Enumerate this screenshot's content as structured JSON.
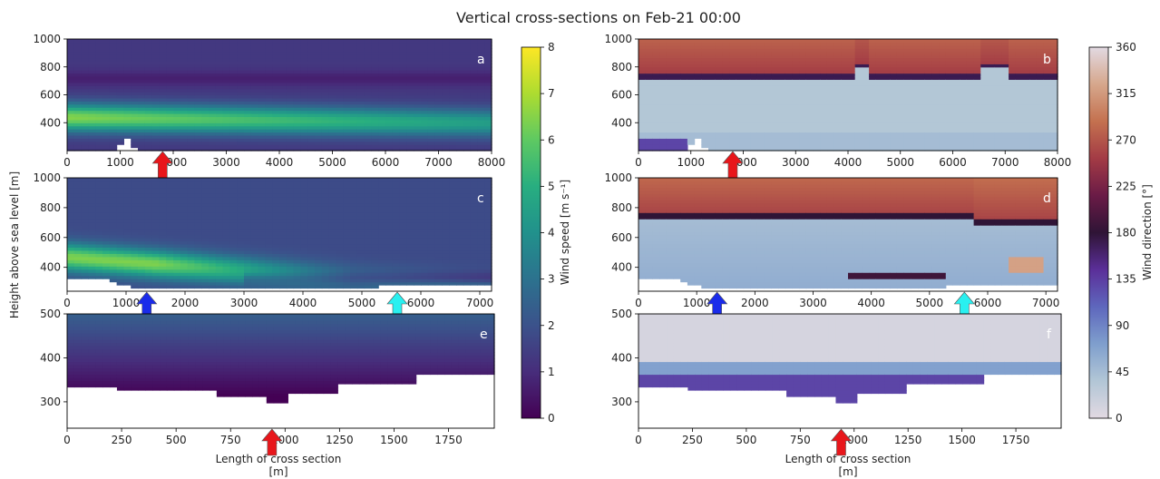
{
  "figure": {
    "title": "Vertical cross-sections on Feb-21 00:00",
    "ylabel": "Height above sea level [m]",
    "xlabel_line1": "Length of cross section",
    "xlabel_line2": "[m]"
  },
  "chart_data": [
    {
      "panel": "a",
      "type": "heatmap",
      "variable": "Wind speed",
      "xlim": [
        0,
        8000
      ],
      "ylim": [
        200,
        1000
      ],
      "xticks": [
        "0",
        "1000",
        "2000",
        "3000",
        "4000",
        "5000",
        "6000",
        "7000",
        "8000"
      ],
      "xtick_vals": [
        0,
        1000,
        2000,
        3000,
        4000,
        5000,
        6000,
        7000,
        8000
      ],
      "yticks": [
        "400",
        "600",
        "800",
        "1000"
      ],
      "ytick_vals": [
        400,
        600,
        800,
        1000
      ],
      "jet_core_height_m": 440,
      "jet_core_speed": 6.5,
      "arrows": [
        {
          "x": 1800,
          "color": "#e8161b"
        }
      ]
    },
    {
      "panel": "b",
      "type": "heatmap",
      "variable": "Wind direction",
      "xlim": [
        0,
        8000
      ],
      "ylim": [
        200,
        1000
      ],
      "xticks": [
        "0",
        "1000",
        "2000",
        "3000",
        "4000",
        "5000",
        "6000",
        "7000",
        "8000"
      ],
      "xtick_vals": [
        0,
        1000,
        2000,
        3000,
        4000,
        5000,
        6000,
        7000,
        8000
      ],
      "yticks": [
        "400",
        "600",
        "800",
        "1000"
      ],
      "ytick_vals": [
        400,
        600,
        800,
        1000
      ],
      "direction_shift_height_m": 720,
      "arrows": [
        {
          "x": 1800,
          "color": "#e8161b"
        }
      ]
    },
    {
      "panel": "c",
      "type": "heatmap",
      "variable": "Wind speed",
      "xlim": [
        0,
        7200
      ],
      "ylim": [
        240,
        1000
      ],
      "xticks": [
        "0",
        "1000",
        "2000",
        "3000",
        "4000",
        "5000",
        "6000",
        "7000"
      ],
      "xtick_vals": [
        0,
        1000,
        2000,
        3000,
        4000,
        5000,
        6000,
        7000
      ],
      "yticks": [
        "400",
        "600",
        "800",
        "1000"
      ],
      "ytick_vals": [
        400,
        600,
        800,
        1000
      ],
      "jet_core_height_m": 470,
      "jet_core_speed": 6.2,
      "arrows": [
        {
          "x": 1350,
          "color": "#1a2bea"
        },
        {
          "x": 5600,
          "color": "#29f0f0"
        }
      ]
    },
    {
      "panel": "d",
      "type": "heatmap",
      "variable": "Wind direction",
      "xlim": [
        0,
        7200
      ],
      "ylim": [
        240,
        1000
      ],
      "xticks": [
        "0",
        "1000",
        "2000",
        "3000",
        "4000",
        "5000",
        "6000",
        "7000"
      ],
      "xtick_vals": [
        0,
        1000,
        2000,
        3000,
        4000,
        5000,
        6000,
        7000
      ],
      "yticks": [
        "400",
        "600",
        "800",
        "1000"
      ],
      "ytick_vals": [
        400,
        600,
        800,
        1000
      ],
      "direction_shift_height_m": 730,
      "arrows": [
        {
          "x": 1350,
          "color": "#1a2bea"
        },
        {
          "x": 5600,
          "color": "#29f0f0"
        }
      ]
    },
    {
      "panel": "e",
      "type": "heatmap",
      "variable": "Wind speed",
      "xlim": [
        0,
        1960
      ],
      "ylim": [
        240,
        500
      ],
      "xticks": [
        "0",
        "250",
        "500",
        "750",
        "1000",
        "1250",
        "1500",
        "1750"
      ],
      "xtick_vals": [
        0,
        250,
        500,
        750,
        1000,
        1250,
        1500,
        1750
      ],
      "yticks": [
        "300",
        "400",
        "500"
      ],
      "ytick_vals": [
        300,
        400,
        500
      ],
      "arrows": [
        {
          "x": 940,
          "color": "#e8161b"
        }
      ]
    },
    {
      "panel": "f",
      "type": "heatmap",
      "variable": "Wind direction",
      "xlim": [
        0,
        1960
      ],
      "ylim": [
        240,
        500
      ],
      "xticks": [
        "0",
        "250",
        "500",
        "750",
        "1000",
        "1250",
        "1500",
        "1750"
      ],
      "xtick_vals": [
        0,
        250,
        500,
        750,
        1000,
        1250,
        1500,
        1750
      ],
      "yticks": [
        "300",
        "400",
        "500"
      ],
      "ytick_vals": [
        300,
        400,
        500
      ],
      "arrows": [
        {
          "x": 940,
          "color": "#e8161b"
        }
      ]
    }
  ],
  "colorbars": {
    "speed": {
      "label": "Wind speed [m s⁻¹]",
      "min": 0,
      "max": 8,
      "ticks": [
        "0",
        "1",
        "2",
        "3",
        "4",
        "5",
        "6",
        "7",
        "8"
      ],
      "tick_vals": [
        0,
        1,
        2,
        3,
        4,
        5,
        6,
        7,
        8
      ],
      "colors": [
        "#440154",
        "#472d7b",
        "#3b528b",
        "#2c728e",
        "#21918c",
        "#28ae80",
        "#5ec962",
        "#addc30",
        "#fde725"
      ]
    },
    "direction": {
      "label": "Wind direction [°]",
      "min": 0,
      "max": 360,
      "ticks": [
        "0",
        "45",
        "90",
        "135",
        "180",
        "225",
        "270",
        "315",
        "360"
      ],
      "tick_vals": [
        0,
        45,
        90,
        135,
        180,
        225,
        270,
        315,
        360
      ],
      "colors": [
        "#e2d9e2",
        "#b2c6d6",
        "#7f9fcd",
        "#5e67bd",
        "#5b2f99",
        "#2f1436",
        "#6a1b46",
        "#a33b45",
        "#c4714f",
        "#d6a78c",
        "#e2d9e2"
      ]
    }
  }
}
